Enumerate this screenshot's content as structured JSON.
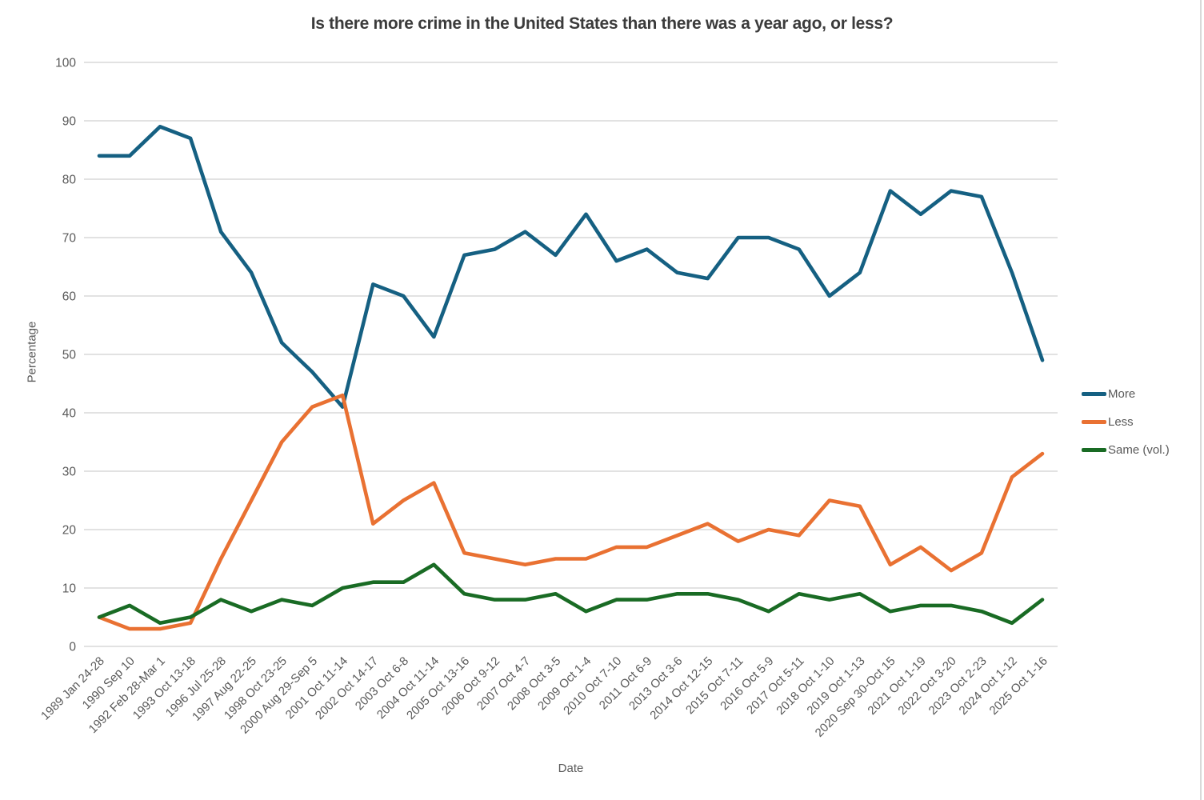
{
  "title": "Is there more crime in the United States than there was a year ago, or less?",
  "colors": {
    "background": "#FFFFFF",
    "gridline": "#D9D9D9",
    "axis_text": "#595959",
    "title_text": "#3B3B3B",
    "border": "#D9D9D9"
  },
  "chart_data": {
    "type": "line",
    "title": "Is there more crime in the United States than there was a year ago, or less?",
    "xlabel": "Date",
    "ylabel": "Percentage",
    "ylim": [
      0,
      100
    ],
    "y_ticks": [
      0,
      10,
      20,
      30,
      40,
      50,
      60,
      70,
      80,
      90,
      100
    ],
    "grid": "horizontal",
    "legend_position": "right",
    "categories": [
      "1989 Jan 24-28",
      "1990 Sep 10",
      "1992 Feb 28-Mar 1",
      "1993 Oct 13-18",
      "1996 Jul 25-28",
      "1997 Aug 22-25",
      "1998 Oct 23-25",
      "2000 Aug 29-Sep 5",
      "2001 Oct 11-14",
      "2002 Oct 14-17",
      "2003 Oct 6-8",
      "2004 Oct 11-14",
      "2005 Oct 13-16",
      "2006 Oct 9-12",
      "2007 Oct 4-7",
      "2008 Oct 3-5",
      "2009 Oct 1-4",
      "2010 Oct 7-10",
      "2011 Oct 6-9",
      "2013 Oct 3-6",
      "2014 Oct 12-15",
      "2015 Oct 7-11",
      "2016 Oct 5-9",
      "2017 Oct 5-11",
      "2018 Oct 1-10",
      "2019 Oct 1-13",
      "2020 Sep 30-Oct 15",
      "2021 Oct 1-19",
      "2022 Oct 3-20",
      "2023 Oct 2-23",
      "2024 Oct 1-12",
      "2025 Oct 1-16"
    ],
    "series": [
      {
        "name": "More",
        "color": "#156082",
        "values": [
          84,
          84,
          89,
          87,
          71,
          64,
          52,
          47,
          41,
          62,
          60,
          53,
          67,
          68,
          71,
          67,
          74,
          66,
          68,
          64,
          63,
          70,
          70,
          68,
          60,
          64,
          78,
          74,
          78,
          77,
          64,
          49
        ]
      },
      {
        "name": "Less",
        "color": "#E97132",
        "values": [
          5,
          3,
          3,
          4,
          15,
          25,
          35,
          41,
          43,
          21,
          25,
          28,
          16,
          15,
          14,
          15,
          15,
          17,
          17,
          19,
          21,
          18,
          20,
          19,
          25,
          24,
          14,
          17,
          13,
          16,
          29,
          33
        ]
      },
      {
        "name": "Same (vol.)",
        "color": "#196B24",
        "values": [
          5,
          7,
          4,
          5,
          8,
          6,
          8,
          7,
          10,
          11,
          11,
          14,
          9,
          8,
          8,
          9,
          6,
          8,
          8,
          9,
          9,
          8,
          6,
          9,
          8,
          9,
          6,
          7,
          7,
          6,
          4,
          8
        ]
      }
    ]
  }
}
